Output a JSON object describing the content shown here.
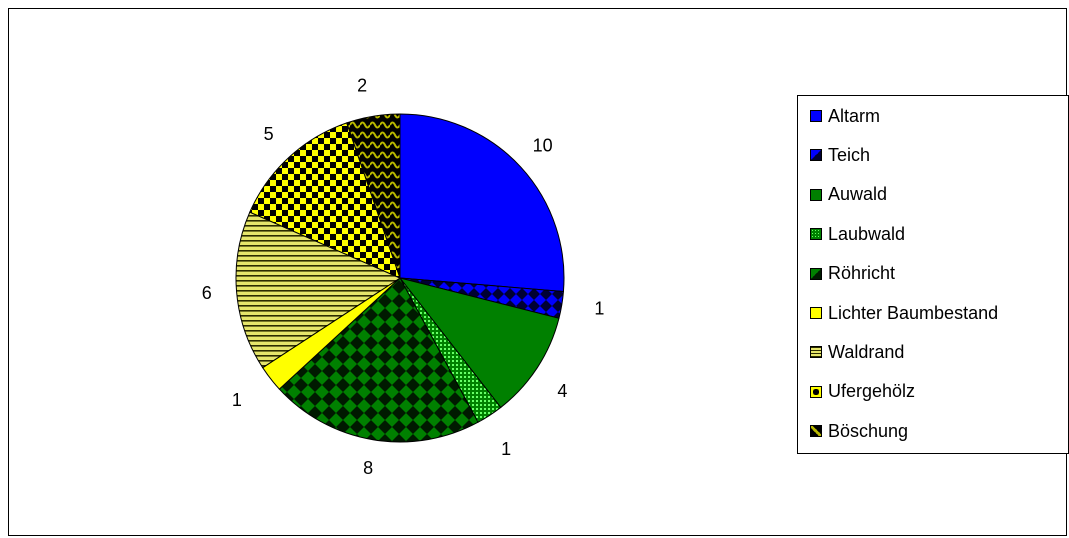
{
  "chart_data": {
    "type": "pie",
    "categories": [
      "Altarm",
      "Teich",
      "Auwald",
      "Laubwald",
      "Röhricht",
      "Lichter Baumbestand",
      "Waldrand",
      "Ufergehölz",
      "Böschung"
    ],
    "values": [
      10,
      1,
      4,
      1,
      8,
      1,
      6,
      5,
      2
    ],
    "data_labels": [
      "10",
      "1",
      "4",
      "1",
      "8",
      "1",
      "6",
      "5",
      "2"
    ],
    "legend_position": "right",
    "start_angle_deg": 0,
    "direction": "clockwise",
    "slices": [
      {
        "label": "Altarm",
        "value": 10,
        "color": "#0000ff",
        "fill": "solid"
      },
      {
        "label": "Teich",
        "value": 1,
        "color": "#0000ff",
        "fill": "diamond-pattern-dark"
      },
      {
        "label": "Auwald",
        "value": 4,
        "color": "#008000",
        "fill": "solid"
      },
      {
        "label": "Laubwald",
        "value": 1,
        "color": "#008000",
        "fill": "dotted-pattern"
      },
      {
        "label": "Röhricht",
        "value": 8,
        "color": "#008000",
        "fill": "checker-pattern-dark"
      },
      {
        "label": "Lichter Baumbestand",
        "value": 1,
        "color": "#ffff00",
        "fill": "solid"
      },
      {
        "label": "Waldrand",
        "value": 6,
        "color": "#cccc00",
        "fill": "horizontal-stripes"
      },
      {
        "label": "Ufergehölz",
        "value": 5,
        "color": "#ffff00",
        "fill": "checker-pattern"
      },
      {
        "label": "Böschung",
        "value": 2,
        "color": "#808000",
        "fill": "wave-pattern-dark"
      }
    ]
  }
}
